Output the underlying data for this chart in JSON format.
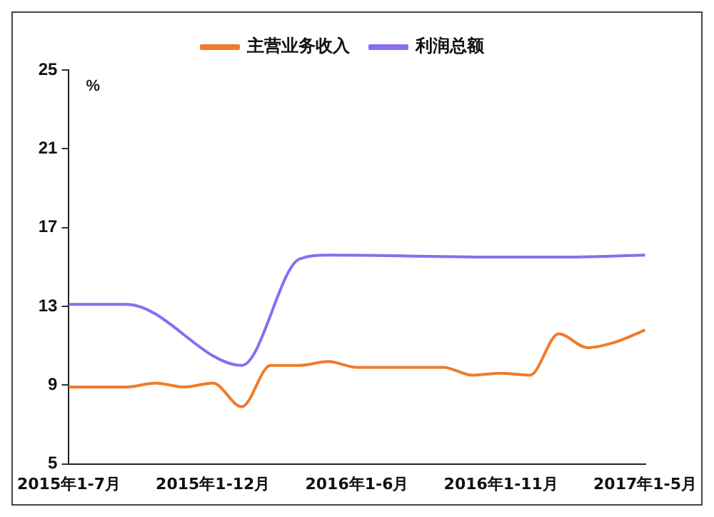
{
  "chart_data": {
    "type": "line",
    "ylabel": "%",
    "categories": [
      "2015年1-7月",
      null,
      null,
      null,
      null,
      "2015年1-12月",
      null,
      null,
      null,
      null,
      "2016年1-6月",
      null,
      null,
      null,
      null,
      "2016年1-11月",
      null,
      null,
      null,
      null,
      "2017年1-5月"
    ],
    "series": [
      {
        "name": "主营业务收入",
        "color": "#f07b2a",
        "values": [
          8.9,
          8.9,
          8.9,
          9.1,
          8.9,
          9.1,
          7.9,
          10.0,
          10.0,
          10.2,
          9.9,
          9.9,
          9.9,
          9.9,
          9.5,
          9.6,
          9.5,
          11.6,
          10.9,
          11.2,
          11.8
        ]
      },
      {
        "name": "利润总额",
        "color": "#8b6cf0",
        "values": [
          13.1,
          13.1,
          13.1,
          null,
          null,
          null,
          10.0,
          null,
          15.4,
          15.6,
          null,
          null,
          null,
          null,
          null,
          15.5,
          null,
          15.5,
          null,
          null,
          15.6
        ]
      }
    ],
    "ylim": [
      5,
      25
    ],
    "yticks": [
      5,
      9,
      13,
      17,
      21,
      25
    ],
    "grid": false,
    "legend": "top",
    "marker": "none",
    "line_style": "solid"
  }
}
